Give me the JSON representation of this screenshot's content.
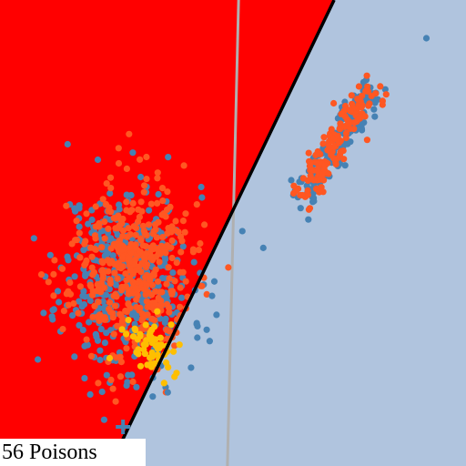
{
  "caption": "56 Poisons",
  "chart_data": {
    "type": "scatter",
    "title": "",
    "xlabel": "",
    "ylabel": "",
    "xlim": [
      0,
      100
    ],
    "ylim": [
      0,
      100
    ],
    "grid": false,
    "legend": "none",
    "background_regions": [
      {
        "name": "",
        "color": "#ff0000",
        "polygon": [
          [
            0,
            100
          ],
          [
            71.7,
            100
          ],
          [
            23.6,
            0
          ],
          [
            0,
            0
          ]
        ]
      },
      {
        "name": "",
        "color": "#b0c4de",
        "polygon": [
          [
            71.7,
            100
          ],
          [
            100,
            100
          ],
          [
            100,
            0
          ],
          [
            23.6,
            0
          ]
        ]
      }
    ],
    "decision_boundary": {
      "color": "#000000",
      "points": [
        [
          71.7,
          100
        ],
        [
          23.6,
          0
        ]
      ]
    },
    "reference_line": {
      "color": "#b0b0b0",
      "points": [
        [
          51.2,
          100
        ],
        [
          48.8,
          0
        ]
      ]
    },
    "clusters": [
      {
        "name": "",
        "color": "#4682b4",
        "center": [
          27,
          40
        ],
        "spread": [
          7,
          10
        ],
        "count": 420,
        "seed": 11
      },
      {
        "name": "",
        "color": "#ff5722",
        "center": [
          28,
          42
        ],
        "spread": [
          6.5,
          9.5
        ],
        "count": 420,
        "seed": 23
      },
      {
        "name": "",
        "color": "#4682b4",
        "center": [
          72,
          69
        ],
        "spread": [
          1.6,
          1.6
        ],
        "count": 170,
        "seed": 37,
        "axis": [
          0.55,
          0.85
        ],
        "length": 14
      },
      {
        "name": "",
        "color": "#ff5722",
        "center": [
          72,
          69
        ],
        "spread": [
          1.6,
          1.6
        ],
        "count": 150,
        "seed": 51,
        "axis": [
          0.55,
          0.85
        ],
        "length": 14
      },
      {
        "name": "",
        "color": "#ffbf00",
        "center": [
          33,
          26
        ],
        "spread": [
          3.2,
          3.2
        ],
        "count": 56,
        "seed": 73
      }
    ],
    "stray_points": [
      {
        "color": "#4682b4",
        "x": 91.5,
        "y": 91.8
      },
      {
        "color": "#4682b4",
        "x": 56.5,
        "y": 46.8
      },
      {
        "color": "#4682b4",
        "x": 52,
        "y": 50.4
      },
      {
        "color": "#4682b4",
        "x": 46,
        "y": 39.6
      },
      {
        "color": "#ff5722",
        "x": 49,
        "y": 42.6
      },
      {
        "color": "#4682b4",
        "x": 45,
        "y": 26.8
      },
      {
        "color": "#4682b4",
        "x": 41,
        "y": 21.1
      },
      {
        "color": "#4682b4",
        "x": 36,
        "y": 15.8
      },
      {
        "color": "#4682b4",
        "x": 45.5,
        "y": 36.5
      }
    ],
    "markers": [
      {
        "shape": "plus",
        "color": "#4682b4",
        "x": 26.4,
        "y": 8.4
      }
    ]
  }
}
